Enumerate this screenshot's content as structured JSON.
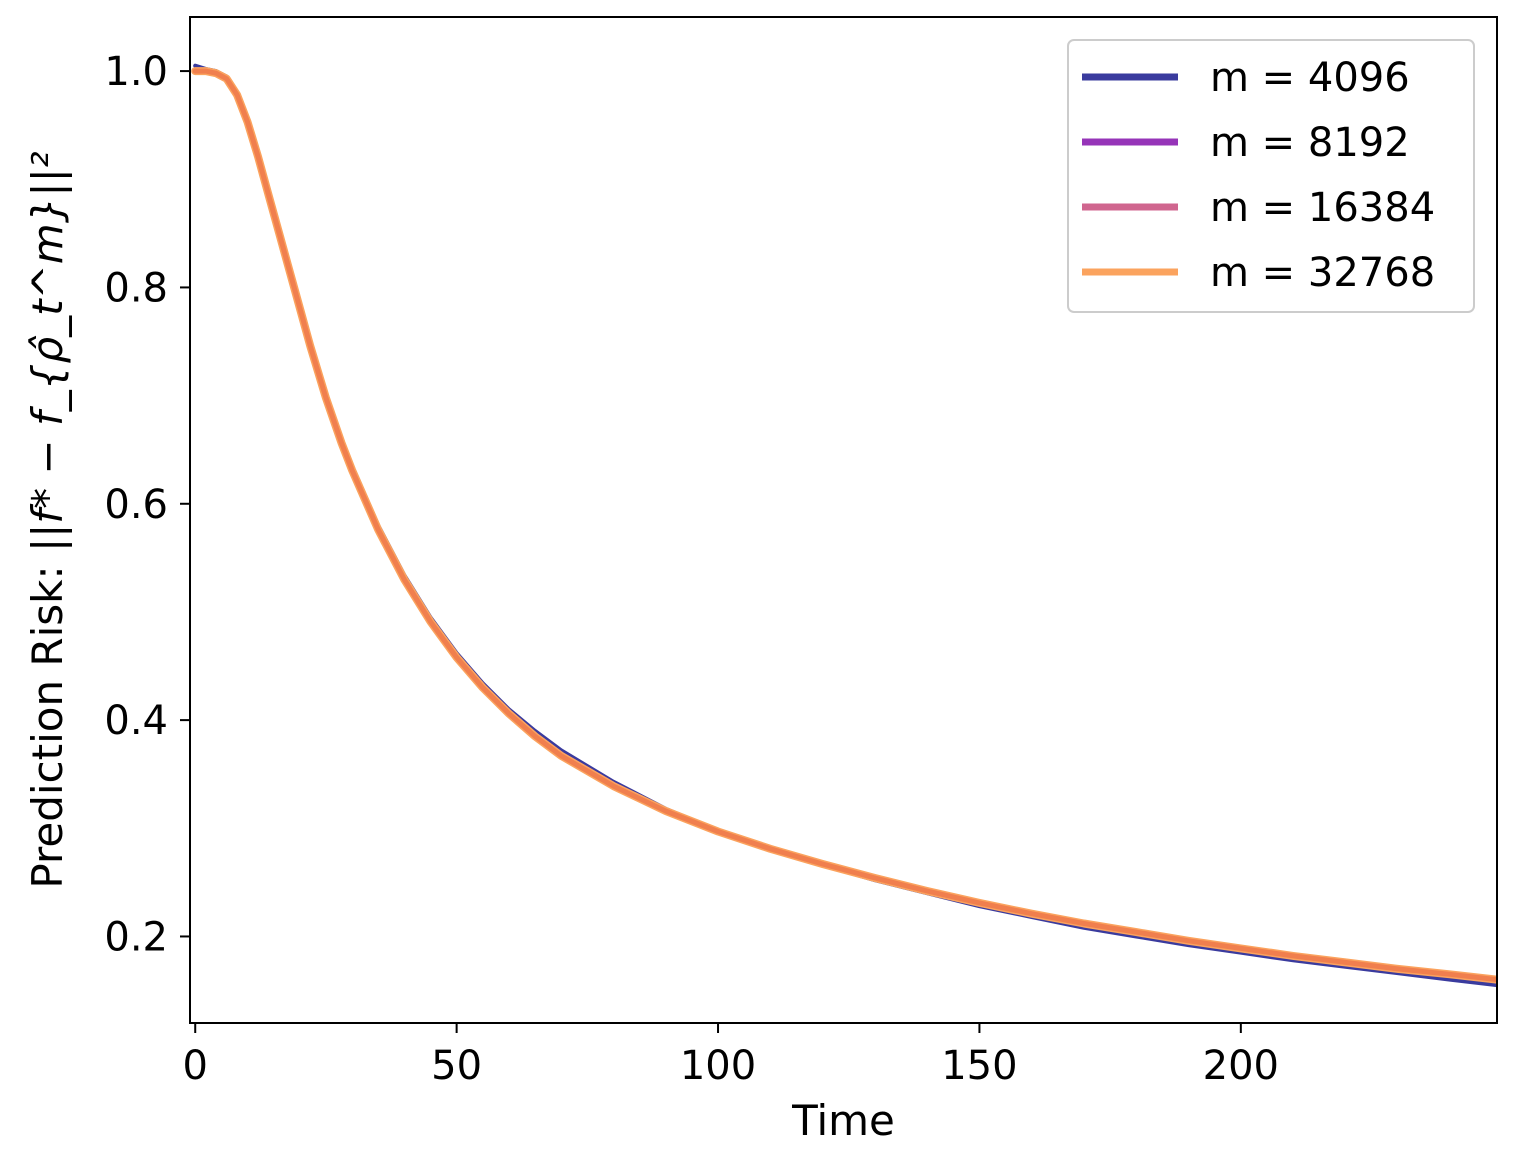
{
  "chart_data": {
    "type": "line",
    "title": "",
    "xlabel": "Time",
    "ylabel_text": "Prediction Risk: ",
    "ylabel_math": "||f* − f_{ρ̂_t^m}||²",
    "xlim": [
      -1,
      249
    ],
    "ylim": [
      0.12,
      1.05
    ],
    "xticks": [
      0,
      50,
      100,
      150,
      200
    ],
    "yticks": [
      0.2,
      0.4,
      0.6,
      0.8,
      1.0
    ],
    "xtick_labels": [
      "0",
      "50",
      "100",
      "150",
      "200"
    ],
    "ytick_labels": [
      "0.2",
      "0.4",
      "0.6",
      "0.8",
      "1.0"
    ],
    "grid": false,
    "legend_position": "top-right",
    "x": [
      0,
      2,
      4,
      6,
      8,
      10,
      12,
      14,
      16,
      18,
      20,
      22,
      25,
      28,
      30,
      35,
      40,
      45,
      50,
      55,
      60,
      65,
      70,
      80,
      90,
      100,
      110,
      120,
      130,
      140,
      150,
      160,
      170,
      180,
      190,
      200,
      210,
      220,
      230,
      240,
      249
    ],
    "series": [
      {
        "name": "m = 4096",
        "color": "#3a3b9e",
        "values": [
          1.005,
          1.002,
          1.0,
          0.995,
          0.98,
          0.955,
          0.925,
          0.89,
          0.855,
          0.82,
          0.785,
          0.75,
          0.702,
          0.66,
          0.635,
          0.58,
          0.534,
          0.495,
          0.462,
          0.434,
          0.41,
          0.39,
          0.372,
          0.343,
          0.318,
          0.298,
          0.281,
          0.266,
          0.252,
          0.24,
          0.228,
          0.218,
          0.208,
          0.2,
          0.192,
          0.185,
          0.178,
          0.172,
          0.166,
          0.16,
          0.155
        ]
      },
      {
        "name": "m = 8192",
        "color": "#9634b8",
        "values": [
          1.0,
          1.0,
          0.998,
          0.993,
          0.978,
          0.953,
          0.922,
          0.887,
          0.852,
          0.817,
          0.782,
          0.747,
          0.699,
          0.657,
          0.632,
          0.577,
          0.531,
          0.492,
          0.459,
          0.431,
          0.407,
          0.387,
          0.369,
          0.341,
          0.317,
          0.298,
          0.282,
          0.268,
          0.255,
          0.243,
          0.232,
          0.222,
          0.213,
          0.205,
          0.197,
          0.19,
          0.183,
          0.177,
          0.171,
          0.166,
          0.161
        ]
      },
      {
        "name": "m = 16384",
        "color": "#d0668f",
        "values": [
          1.0,
          1.0,
          0.998,
          0.993,
          0.978,
          0.953,
          0.922,
          0.887,
          0.852,
          0.817,
          0.782,
          0.747,
          0.699,
          0.657,
          0.632,
          0.577,
          0.531,
          0.492,
          0.459,
          0.431,
          0.407,
          0.386,
          0.368,
          0.34,
          0.316,
          0.297,
          0.281,
          0.267,
          0.254,
          0.242,
          0.231,
          0.221,
          0.212,
          0.204,
          0.196,
          0.189,
          0.182,
          0.176,
          0.17,
          0.165,
          0.16
        ]
      },
      {
        "name": "m = 32768",
        "color": "#fba35e",
        "values": [
          1.0,
          1.0,
          0.998,
          0.993,
          0.978,
          0.953,
          0.921,
          0.886,
          0.851,
          0.816,
          0.781,
          0.746,
          0.698,
          0.656,
          0.631,
          0.576,
          0.53,
          0.491,
          0.458,
          0.43,
          0.406,
          0.385,
          0.367,
          0.339,
          0.316,
          0.297,
          0.281,
          0.267,
          0.254,
          0.242,
          0.231,
          0.221,
          0.212,
          0.204,
          0.196,
          0.189,
          0.182,
          0.176,
          0.17,
          0.165,
          0.16
        ]
      }
    ],
    "overlay_line_color": "#f07f4e"
  }
}
